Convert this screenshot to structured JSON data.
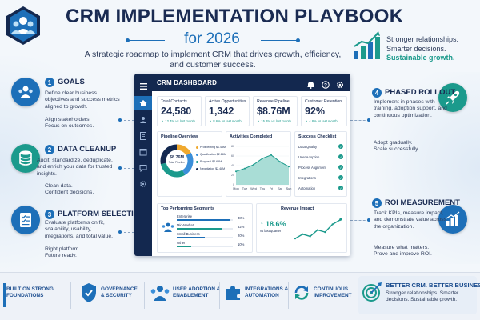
{
  "header": {
    "title": "CRM IMPLEMENTATION PLAYBOOK",
    "subtitle": "for 2026",
    "tagline": "A strategic roadmap to implement CRM that drives growth, efficiency, and customer success.",
    "right_lines": [
      "Stronger relationships.",
      "Smarter decisions.",
      "Sustainable growth."
    ]
  },
  "steps": [
    {
      "number": "1",
      "title": "GOALS",
      "desc": "Define clear business objectives and success metrics aligned to growth.",
      "foot": "Align stakeholders.\nFocus on outcomes.",
      "icon": "people-group-icon"
    },
    {
      "number": "2",
      "title": "DATA CLEANUP",
      "desc": "Audit, standardize, deduplicate, and enrich your data for trusted insights.",
      "foot": "Clean data.\nConfident decisions.",
      "icon": "database-icon"
    },
    {
      "number": "3",
      "title": "PLATFORM SELECTION",
      "desc": "Evaluate platforms on fit, scalability, usability, integrations, and total value.",
      "foot": "Right platform.\nFuture ready.",
      "icon": "checklist-icon"
    },
    {
      "number": "4",
      "title": "PHASED ROLLOUT",
      "desc": "Implement in phases with training, adoption support, and continuous optimization.",
      "foot": "Adopt gradually.\nScale successfully.",
      "icon": "rocket-icon"
    },
    {
      "number": "5",
      "title": "ROI MEASUREMENT",
      "desc": "Track KPIs, measure impact, and demonstrate value across the organization.",
      "foot": "Measure what matters.\nProve and improve ROI.",
      "icon": "bar-growth-icon"
    }
  ],
  "dashboard": {
    "title": "CRM DASHBOARD",
    "kpis": [
      {
        "label": "Total Contacts",
        "value": "24,580",
        "delta": "▲ 12.4% vs last month"
      },
      {
        "label": "Active Opportunities",
        "value": "1,342",
        "delta": "▲ 8.6% vs last month"
      },
      {
        "label": "Revenue Pipeline",
        "value": "$8.76M",
        "delta": "▲ 15.3% vs last month"
      },
      {
        "label": "Customer Retention",
        "value": "92%",
        "delta": "▲ 4.8% vs last month"
      }
    ],
    "pipeline": {
      "title": "Pipeline Overview",
      "center_value": "$8.76M",
      "center_label": "Total Pipeline",
      "rows": [
        {
          "label": "Prospecting",
          "value": "$1.45M",
          "share": 0.166,
          "color": "#f0a92e"
        },
        {
          "label": "Qualification",
          "value": "$2.18M",
          "share": 0.249,
          "color": "#3b8fd9"
        },
        {
          "label": "Proposal",
          "value": "$2.65M",
          "share": 0.302,
          "color": "#1b9a8c"
        },
        {
          "label": "Negotiation",
          "value": "$2.48M",
          "share": 0.283,
          "color": "#13284f"
        }
      ]
    },
    "activities": {
      "title": "Activities Completed",
      "days": [
        "Mon",
        "Tue",
        "Wed",
        "Thu",
        "Fri",
        "Sat",
        "Sun"
      ],
      "ticks": [
        "80",
        "60",
        "40",
        "20",
        "0"
      ],
      "values": [
        28,
        34,
        42,
        55,
        62,
        48,
        38
      ],
      "ymax": 80
    },
    "checklist": {
      "title": "Success Checklist",
      "items": [
        "Data Quality",
        "User Adoption",
        "Process Alignment",
        "Integrations",
        "Automation"
      ]
    },
    "segments": {
      "title": "Top Performing Segments",
      "rows": [
        {
          "label": "Enterprise",
          "value": "38%",
          "share": 0.38
        },
        {
          "label": "Mid-Market",
          "value": "32%",
          "share": 0.32
        },
        {
          "label": "Small Business",
          "value": "20%",
          "share": 0.2
        },
        {
          "label": "Other",
          "value": "10%",
          "share": 0.1
        }
      ]
    },
    "revenue": {
      "title": "Revenue Impact",
      "value": "↑ 18.6%",
      "sub": "vs last quarter",
      "trend": [
        10,
        16,
        13,
        22,
        19,
        30,
        36
      ]
    }
  },
  "footer": {
    "items": [
      {
        "label": "BUILT ON STRONG\nFOUNDATIONS",
        "icon": "foundation-bars-icon"
      },
      {
        "label": "GOVERNANCE\n& SECURITY",
        "icon": "shield-icon"
      },
      {
        "label": "USER ADOPTION &\nENABLEMENT",
        "icon": "users-icon"
      },
      {
        "label": "INTEGRATIONS &\nAUTOMATION",
        "icon": "puzzle-icon"
      },
      {
        "label": "CONTINUOUS\nIMPROVEMENT",
        "icon": "cycle-icon"
      }
    ],
    "right_title": "BETTER CRM. BETTER BUSINESS.",
    "right_sub": "Stronger relationships. Smarter decisions. Sustainable growth."
  },
  "colors": {
    "navy": "#13284f",
    "blue": "#1d6fb8",
    "teal": "#1b9a8c",
    "orange": "#f0a92e"
  }
}
